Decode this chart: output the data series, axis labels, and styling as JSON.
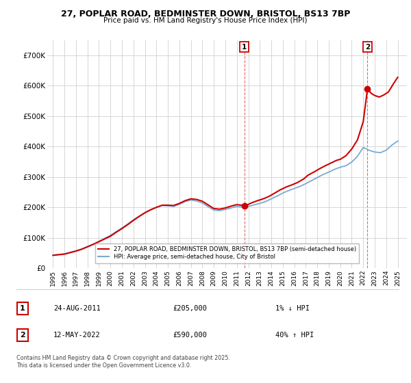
{
  "title_line1": "27, POPLAR ROAD, BEDMINSTER DOWN, BRISTOL, BS13 7BP",
  "title_line2": "Price paid vs. HM Land Registry's House Price Index (HPI)",
  "ylim": [
    0,
    750000
  ],
  "yticks": [
    0,
    100000,
    200000,
    300000,
    400000,
    500000,
    600000,
    700000
  ],
  "ytick_labels": [
    "£0",
    "£100K",
    "£200K",
    "£300K",
    "£400K",
    "£500K",
    "£600K",
    "£700K"
  ],
  "xlim": [
    1994.5,
    2025.8
  ],
  "xticks": [
    1995,
    1996,
    1997,
    1998,
    1999,
    2000,
    2001,
    2002,
    2003,
    2004,
    2005,
    2006,
    2007,
    2008,
    2009,
    2010,
    2011,
    2012,
    2013,
    2014,
    2015,
    2016,
    2017,
    2018,
    2019,
    2020,
    2021,
    2022,
    2023,
    2024,
    2025
  ],
  "red_line_color": "#cc0000",
  "blue_line_color": "#7aaad0",
  "grid_color": "#d0d0d0",
  "background_color": "#ffffff",
  "point1_x": 2011.65,
  "point1_y": 205000,
  "point1_label": "1",
  "point1_date": "24-AUG-2011",
  "point1_price": "£205,000",
  "point1_hpi": "1% ↓ HPI",
  "point2_x": 2022.37,
  "point2_y": 590000,
  "point2_label": "2",
  "point2_date": "12-MAY-2022",
  "point2_price": "£590,000",
  "point2_hpi": "40% ↑ HPI",
  "legend_line1": "27, POPLAR ROAD, BEDMINSTER DOWN, BRISTOL, BS13 7BP (semi-detached house)",
  "legend_line2": "HPI: Average price, semi-detached house, City of Bristol",
  "footer_line1": "Contains HM Land Registry data © Crown copyright and database right 2025.",
  "footer_line2": "This data is licensed under the Open Government Licence v3.0.",
  "red_x": [
    1995.0,
    1996.0,
    1997.0,
    1997.5,
    1998.0,
    1998.5,
    1999.0,
    1999.5,
    2000.0,
    2000.5,
    2001.0,
    2001.5,
    2002.0,
    2002.5,
    2003.0,
    2003.5,
    2004.0,
    2004.5,
    2005.0,
    2005.5,
    2006.0,
    2006.5,
    2007.0,
    2007.5,
    2008.0,
    2008.5,
    2009.0,
    2009.5,
    2010.0,
    2010.5,
    2011.0,
    2011.4,
    2011.65,
    2011.9,
    2012.3,
    2012.8,
    2013.3,
    2013.8,
    2014.3,
    2014.8,
    2015.3,
    2015.8,
    2016.3,
    2016.8,
    2017.2,
    2017.7,
    2018.2,
    2018.7,
    2019.2,
    2019.7,
    2020.0,
    2020.5,
    2021.0,
    2021.5,
    2022.0,
    2022.37,
    2022.7,
    2023.0,
    2023.4,
    2023.8,
    2024.2,
    2024.6,
    2025.0
  ],
  "red_y": [
    42000,
    46000,
    56000,
    62000,
    70000,
    78000,
    87000,
    96000,
    105000,
    118000,
    130000,
    143000,
    157000,
    170000,
    182000,
    192000,
    200000,
    207000,
    207000,
    206000,
    213000,
    222000,
    228000,
    226000,
    220000,
    208000,
    196000,
    194000,
    198000,
    204000,
    209000,
    207000,
    205000,
    208000,
    215000,
    222000,
    228000,
    236000,
    247000,
    258000,
    267000,
    274000,
    282000,
    293000,
    306000,
    316000,
    327000,
    337000,
    346000,
    355000,
    358000,
    370000,
    392000,
    422000,
    482000,
    590000,
    575000,
    568000,
    563000,
    570000,
    580000,
    605000,
    628000
  ],
  "blue_x": [
    1995.0,
    1996.0,
    1997.0,
    1997.5,
    1998.0,
    1998.5,
    1999.0,
    1999.5,
    2000.0,
    2000.5,
    2001.0,
    2001.5,
    2002.0,
    2002.5,
    2003.0,
    2003.5,
    2004.0,
    2004.5,
    2005.0,
    2005.5,
    2006.0,
    2006.5,
    2007.0,
    2007.5,
    2008.0,
    2008.5,
    2009.0,
    2009.5,
    2010.0,
    2010.5,
    2011.0,
    2011.5,
    2012.0,
    2012.5,
    2013.0,
    2013.5,
    2014.0,
    2014.5,
    2015.0,
    2015.5,
    2016.0,
    2016.5,
    2017.0,
    2017.5,
    2018.0,
    2018.5,
    2019.0,
    2019.5,
    2020.0,
    2020.5,
    2021.0,
    2021.5,
    2022.0,
    2022.5,
    2023.0,
    2023.5,
    2024.0,
    2024.5,
    2025.0
  ],
  "blue_y": [
    43000,
    47000,
    57000,
    63000,
    71000,
    79000,
    88000,
    98000,
    108000,
    120000,
    132000,
    145000,
    159000,
    171000,
    183000,
    192000,
    200000,
    206000,
    205000,
    203000,
    210000,
    219000,
    224000,
    221000,
    214000,
    202000,
    191000,
    189000,
    193000,
    198000,
    203000,
    201000,
    203000,
    208000,
    213000,
    219000,
    228000,
    237000,
    247000,
    255000,
    262000,
    269000,
    278000,
    288000,
    298000,
    308000,
    316000,
    325000,
    332000,
    337000,
    349000,
    368000,
    397000,
    388000,
    382000,
    380000,
    388000,
    405000,
    418000
  ]
}
